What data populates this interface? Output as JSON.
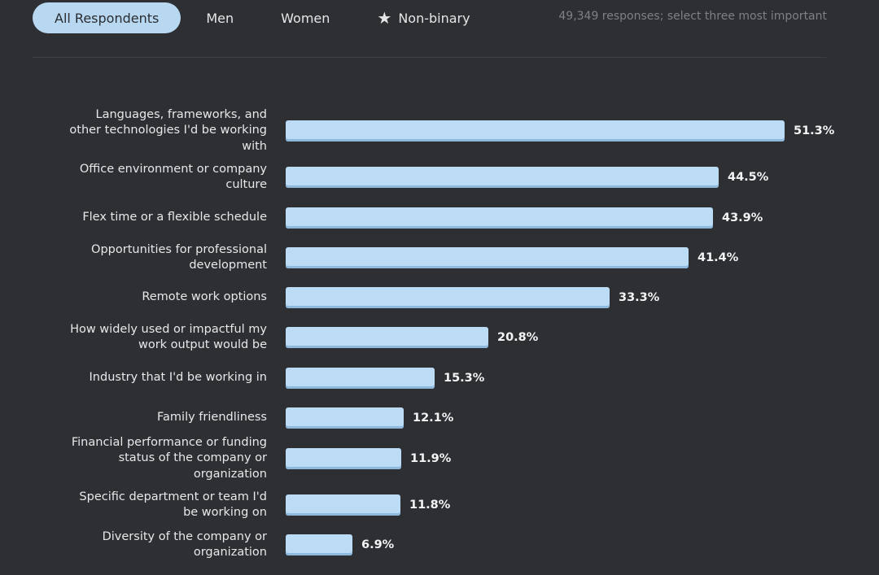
{
  "tabs": [
    {
      "label": "All Respondents",
      "active": true
    },
    {
      "label": "Men",
      "active": false
    },
    {
      "label": "Women",
      "active": false
    },
    {
      "label": "Non-binary",
      "active": false,
      "icon": "star-icon"
    }
  ],
  "response_note": "49,349 responses; select three most important",
  "colors": {
    "background": "#2d2f33",
    "bar": "#bcdcf5",
    "active_tab": "#b8d8f2"
  },
  "chart_data": {
    "type": "bar",
    "orientation": "horizontal",
    "title": "",
    "xlabel": "",
    "ylabel": "",
    "xlim": [
      0,
      51.3
    ],
    "categories": [
      "Languages, frameworks, and other technologies I'd be working with",
      "Office environment or company culture",
      "Flex time or a flexible schedule",
      "Opportunities for professional development",
      "Remote work options",
      "How widely used or impactful my work output would be",
      "Industry that I'd be working in",
      "Family friendliness",
      "Financial performance or funding status of the company or organization",
      "Specific department or team I'd be working on",
      "Diversity of the company or organization"
    ],
    "values": [
      51.3,
      44.5,
      43.9,
      41.4,
      33.3,
      20.8,
      15.3,
      12.1,
      11.9,
      11.8,
      6.9
    ],
    "value_labels": [
      "51.3%",
      "44.5%",
      "43.9%",
      "41.4%",
      "33.3%",
      "20.8%",
      "15.3%",
      "12.1%",
      "11.9%",
      "11.8%",
      "6.9%"
    ]
  }
}
